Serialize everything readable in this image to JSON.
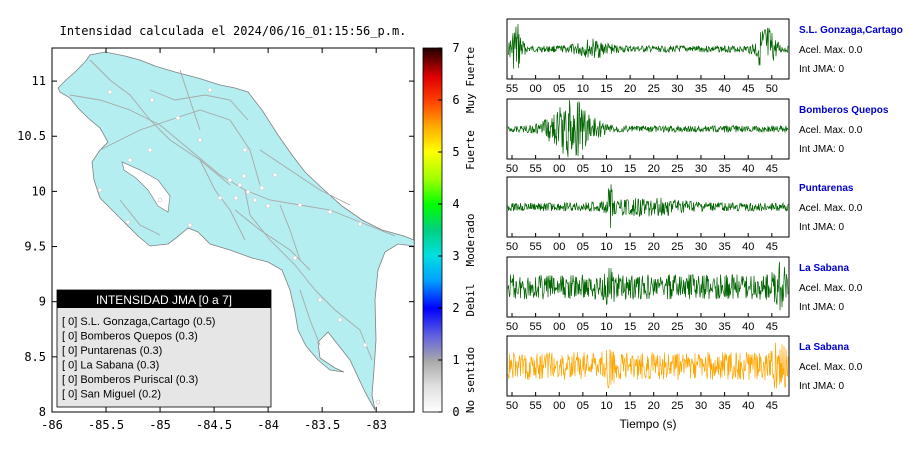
{
  "map": {
    "title": "Intensidad calculada el 2024/06/16_01:15:56_p.m.",
    "x_ticks": [
      "-86",
      "-85.5",
      "-85",
      "-84.5",
      "-84",
      "-83.5",
      "-83"
    ],
    "y_ticks": [
      "11",
      "10.5",
      "10",
      "9.5",
      "9",
      "8.5",
      "8"
    ],
    "xlim": [
      -86,
      -82.65
    ],
    "ylim": [
      8,
      11.3
    ],
    "land_color": "#b4eef0",
    "legend": {
      "title": "INTENSIDAD JMA [0 a 7]",
      "entries": [
        "[ 0]  S.L. Gonzaga,Cartago (0.5)",
        "[ 0]  Bomberos Quepos (0.3)",
        "[ 0]  Puntarenas (0.3)",
        "[ 0]  La Sabana (0.3)",
        "[ 0]  Bomberos Puriscal (0.3)",
        "[ 0]  San Miguel (0.2)"
      ]
    }
  },
  "colorbar": {
    "ticks": [
      "0",
      "1",
      "2",
      "3",
      "4",
      "5",
      "6",
      "7"
    ],
    "range": [
      0,
      7
    ],
    "category_labels": [
      "No sentido",
      "Debil",
      "Moderado",
      "Fuerte",
      "Muy Fuerte"
    ]
  },
  "chart_data": {
    "type": "line",
    "xlabel": "Tiempo (s)",
    "traces": [
      {
        "station": "S.L. Gonzaga,Cartago",
        "acel_label": "Acel. Max. 0.0",
        "int_label": "Int JMA: 0",
        "ticks": [
          "55",
          "00",
          "05",
          "10",
          "15",
          "20",
          "25",
          "30",
          "35",
          "40",
          "45",
          "50"
        ],
        "color": "#006400",
        "station_color": "#0000cc"
      },
      {
        "station": "Bomberos Quepos",
        "acel_label": "Acel. Max. 0.0",
        "int_label": "Int JMA: 0",
        "ticks": [
          "50",
          "55",
          "00",
          "05",
          "10",
          "15",
          "20",
          "25",
          "30",
          "35",
          "40",
          "45"
        ],
        "color": "#006400",
        "station_color": "#0000cc"
      },
      {
        "station": "Puntarenas",
        "acel_label": "Acel. Max. 0.0",
        "int_label": "Int JMA: 0",
        "ticks": [
          "50",
          "55",
          "00",
          "05",
          "10",
          "15",
          "20",
          "25",
          "30",
          "35",
          "40",
          "45"
        ],
        "color": "#006400",
        "station_color": "#0000cc"
      },
      {
        "station": "La Sabana",
        "acel_label": "Acel. Max. 0.0",
        "int_label": "Int JMA: 0",
        "ticks": [
          "50",
          "55",
          "00",
          "05",
          "10",
          "15",
          "20",
          "25",
          "30",
          "35",
          "40",
          "45"
        ],
        "color": "#006400",
        "station_color": "#0000cc"
      },
      {
        "station": "La Sabana",
        "acel_label": "Acel. Max. 0.0",
        "int_label": "Int JMA: 0",
        "ticks": [
          "50",
          "55",
          "00",
          "05",
          "10",
          "15",
          "20",
          "25",
          "30",
          "35",
          "40",
          "45"
        ],
        "color": "#ffa500",
        "station_color": "#0000cc"
      }
    ]
  }
}
